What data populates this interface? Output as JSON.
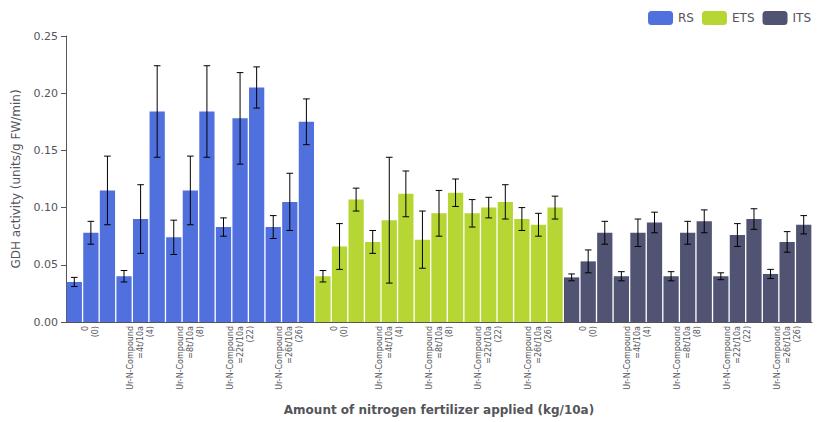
{
  "chart_data": {
    "type": "bar",
    "xlabel": "Amount of nitrogen fertilizer applied (kg/10a)",
    "ylabel": "GDH activity (units/g FW/min)",
    "categories": [
      null,
      "0\n(0)",
      null,
      null,
      "Ur-N-Compound\n=4t/10a\n(4)",
      null,
      null,
      "Ur-N-Compound\n=8t/10a\n(8)",
      null,
      null,
      "Ur-N-Compound\n=22t/10a\n(22)",
      null,
      null,
      "Ur-N-Compound\n=26t/10a\n(26)",
      null,
      null,
      "0\n(0)",
      null,
      null,
      "Ur-N-Compound\n=4t/10a\n(4)",
      null,
      null,
      "Ur-N-Compound\n=8t/10a\n(8)",
      null,
      null,
      "Ur-N-Compound\n=22t/10a\n(22)",
      null,
      null,
      "Ur-N-Compound\n=26t/10a\n(26)",
      null,
      null,
      "0\n(0)",
      null,
      null,
      "Ur-N-Compound\n=4t/10a\n(4)",
      null,
      null,
      "Ur-N-Compound\n=8t/10a\n(8)",
      null,
      null,
      "Ur-N-Compound\n=22t/10a\n(22)",
      null,
      null,
      "Ur-N-Compound\n=26t/10a\n(26)",
      null
    ],
    "series": [
      {
        "name": "RS",
        "values": [
          0.035,
          0.078,
          0.115,
          0.04,
          0.09,
          0.184,
          0.074,
          0.115,
          0.184,
          0.083,
          0.178,
          0.205,
          0.083,
          0.105,
          0.175,
          null,
          null,
          null,
          null,
          null,
          null,
          null,
          null,
          null,
          null,
          null,
          null,
          null,
          null,
          null,
          null,
          null,
          null,
          null,
          null,
          null,
          null,
          null,
          null,
          null,
          null,
          null,
          null,
          null,
          null
        ],
        "errors": [
          0.004,
          0.01,
          0.03,
          0.005,
          0.03,
          0.04,
          0.015,
          0.03,
          0.04,
          0.008,
          0.04,
          0.018,
          0.01,
          0.025,
          0.02,
          null,
          null,
          null,
          null,
          null,
          null,
          null,
          null,
          null,
          null,
          null,
          null,
          null,
          null,
          null,
          null,
          null,
          null,
          null,
          null,
          null,
          null,
          null,
          null,
          null,
          null,
          null,
          null,
          null,
          null
        ]
      },
      {
        "name": "ETS",
        "values": [
          null,
          null,
          null,
          null,
          null,
          null,
          null,
          null,
          null,
          null,
          null,
          null,
          null,
          null,
          null,
          0.04,
          0.066,
          0.107,
          0.07,
          0.089,
          0.112,
          0.072,
          0.095,
          0.113,
          0.095,
          0.1,
          0.105,
          0.09,
          0.085,
          0.1,
          null,
          null,
          null,
          null,
          null,
          null,
          null,
          null,
          null,
          null,
          null,
          null,
          null,
          null,
          null
        ],
        "errors": [
          null,
          null,
          null,
          null,
          null,
          null,
          null,
          null,
          null,
          null,
          null,
          null,
          null,
          null,
          null,
          0.005,
          0.02,
          0.01,
          0.01,
          0.055,
          0.02,
          0.025,
          0.02,
          0.012,
          0.012,
          0.009,
          0.015,
          0.01,
          0.01,
          0.01,
          null,
          null,
          null,
          null,
          null,
          null,
          null,
          null,
          null,
          null,
          null,
          null,
          null,
          null,
          null
        ]
      },
      {
        "name": "ITS",
        "values": [
          null,
          null,
          null,
          null,
          null,
          null,
          null,
          null,
          null,
          null,
          null,
          null,
          null,
          null,
          null,
          null,
          null,
          null,
          null,
          null,
          null,
          null,
          null,
          null,
          null,
          null,
          null,
          null,
          null,
          null,
          0.039,
          0.053,
          0.078,
          0.04,
          0.078,
          0.087,
          0.04,
          0.078,
          0.088,
          0.04,
          0.076,
          0.09,
          0.042,
          0.07,
          0.085
        ],
        "errors": [
          null,
          null,
          null,
          null,
          null,
          null,
          null,
          null,
          null,
          null,
          null,
          null,
          null,
          null,
          null,
          null,
          null,
          null,
          null,
          null,
          null,
          null,
          null,
          null,
          null,
          null,
          null,
          null,
          null,
          null,
          0.003,
          0.01,
          0.01,
          0.004,
          0.012,
          0.009,
          0.004,
          0.01,
          0.01,
          0.003,
          0.01,
          0.009,
          0.004,
          0.009,
          0.008
        ]
      }
    ],
    "ylim": [
      0,
      0.25
    ],
    "yticks": [
      {
        "value": 0,
        "label": "0.00"
      },
      0.05,
      {
        "value": 0.1,
        "label": "0.10"
      },
      0.15,
      {
        "value": 0.2,
        "label": "0.20"
      },
      0.25
    ],
    "grid": false,
    "legend": "upper right"
  }
}
